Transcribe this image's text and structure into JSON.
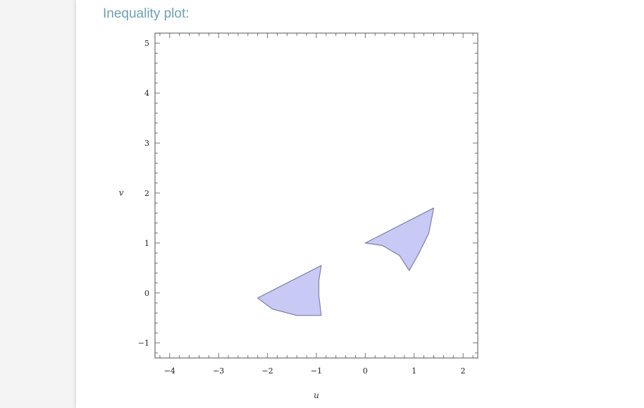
{
  "section": {
    "title": "Inequality plot:"
  },
  "chart_data": {
    "type": "region",
    "xlabel": "u",
    "ylabel": "v",
    "xlim": [
      -4.3,
      2.3
    ],
    "ylim": [
      -1.3,
      5.2
    ],
    "x_ticks": [
      -4,
      -3,
      -2,
      -1,
      0,
      1,
      2
    ],
    "y_ticks": [
      -1,
      0,
      1,
      2,
      3,
      4,
      5
    ],
    "x_tick_labels": [
      "−4",
      "−3",
      "−2",
      "−1",
      "0",
      "1",
      "2"
    ],
    "y_tick_labels": [
      "−1",
      "0",
      "1",
      "2",
      "3",
      "4",
      "5"
    ],
    "fill_color": "#c8caf5",
    "stroke_color": "#7b7fa6",
    "regions": [
      {
        "points": [
          [
            -2.2,
            -0.1
          ],
          [
            -0.9,
            0.55
          ],
          [
            -0.95,
            0.25
          ],
          [
            -0.95,
            -0.05
          ],
          [
            -0.9,
            -0.45
          ],
          [
            -1.4,
            -0.45
          ],
          [
            -1.9,
            -0.32
          ],
          [
            -2.2,
            -0.1
          ]
        ]
      },
      {
        "points": [
          [
            0,
            1.0
          ],
          [
            1.4,
            1.7
          ],
          [
            1.3,
            1.2
          ],
          [
            1.1,
            0.8
          ],
          [
            0.9,
            0.45
          ],
          [
            0.7,
            0.75
          ],
          [
            0.35,
            0.95
          ],
          [
            0,
            1.0
          ]
        ]
      }
    ]
  }
}
